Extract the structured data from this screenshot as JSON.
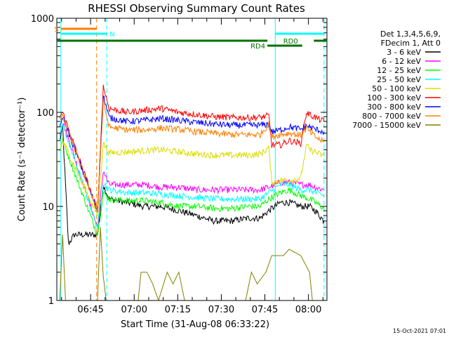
{
  "chart_data": {
    "type": "line",
    "title": "RHESSI Observing Summary Count Rates",
    "xlabel": "Start Time (31-Aug-08 06:33:22)",
    "ylabel": "Count Rate (s⁻¹ detector⁻¹)",
    "y_scale": "log",
    "ylim": [
      1,
      1000
    ],
    "y_ticks": [
      {
        "value": 1,
        "label": "1"
      },
      {
        "value": 10,
        "label": "10"
      },
      {
        "value": 100,
        "label": "100"
      },
      {
        "value": 1000,
        "label": "1000"
      }
    ],
    "x_unit": "minutes after 06:33:22",
    "xlim": [
      0,
      93
    ],
    "x_ticks": [
      {
        "value": 11.63,
        "label": "06:45"
      },
      {
        "value": 26.63,
        "label": "07:00"
      },
      {
        "value": 41.63,
        "label": "07:15"
      },
      {
        "value": 56.63,
        "label": "07:30"
      },
      {
        "value": 71.63,
        "label": "07:45"
      },
      {
        "value": 86.63,
        "label": "08:00"
      }
    ],
    "legend_header": [
      "Det 1,3,4,5,6,9,",
      "FDecim 1, Att 0"
    ],
    "legend_position": "right",
    "series": [
      {
        "name": "3 - 6 keV",
        "color": "#000000",
        "points": [
          [
            1,
            50
          ],
          [
            2,
            70
          ],
          [
            4,
            4
          ],
          [
            6,
            5
          ],
          [
            14,
            5
          ],
          [
            16,
            17
          ],
          [
            18,
            12
          ],
          [
            24,
            11
          ],
          [
            30,
            10
          ],
          [
            36,
            10
          ],
          [
            42,
            9
          ],
          [
            48,
            8
          ],
          [
            54,
            7
          ],
          [
            60,
            7
          ],
          [
            66,
            7.5
          ],
          [
            70,
            7.5
          ],
          [
            73,
            9
          ],
          [
            77,
            11
          ],
          [
            80,
            11
          ],
          [
            84,
            10
          ],
          [
            87,
            10
          ],
          [
            89,
            9
          ],
          [
            92,
            7
          ]
        ]
      },
      {
        "name": "6 - 12 keV",
        "color": "#ff00ff",
        "points": [
          [
            1,
            60
          ],
          [
            2,
            80
          ],
          [
            14,
            6
          ],
          [
            16,
            24
          ],
          [
            18,
            17
          ],
          [
            24,
            17
          ],
          [
            30,
            17
          ],
          [
            36,
            16
          ],
          [
            42,
            16
          ],
          [
            48,
            15
          ],
          [
            54,
            15
          ],
          [
            60,
            15
          ],
          [
            66,
            15
          ],
          [
            70,
            15
          ],
          [
            73,
            16
          ],
          [
            77,
            18
          ],
          [
            80,
            18
          ],
          [
            84,
            17
          ],
          [
            87,
            17
          ],
          [
            89,
            16
          ],
          [
            92,
            15
          ]
        ]
      },
      {
        "name": "12 - 25 keV",
        "color": "#00ff00",
        "points": [
          [
            1,
            40
          ],
          [
            2,
            50
          ],
          [
            14,
            5
          ],
          [
            16,
            14
          ],
          [
            18,
            12
          ],
          [
            24,
            11.5
          ],
          [
            30,
            11.5
          ],
          [
            36,
            11
          ],
          [
            42,
            10
          ],
          [
            48,
            10
          ],
          [
            54,
            9.5
          ],
          [
            60,
            9.5
          ],
          [
            66,
            10
          ],
          [
            70,
            10
          ],
          [
            73,
            12
          ],
          [
            77,
            14
          ],
          [
            80,
            15
          ],
          [
            84,
            13
          ],
          [
            87,
            12
          ],
          [
            89,
            11
          ],
          [
            92,
            9.5
          ]
        ]
      },
      {
        "name": "25 - 50 keV",
        "color": "#00ffff",
        "points": [
          [
            1,
            55
          ],
          [
            2,
            75
          ],
          [
            14,
            6
          ],
          [
            16,
            18
          ],
          [
            18,
            15
          ],
          [
            24,
            14
          ],
          [
            30,
            14
          ],
          [
            36,
            13.5
          ],
          [
            42,
            13
          ],
          [
            48,
            12.5
          ],
          [
            54,
            12
          ],
          [
            60,
            12
          ],
          [
            66,
            12
          ],
          [
            70,
            12
          ],
          [
            73,
            14
          ],
          [
            77,
            17
          ],
          [
            80,
            17
          ],
          [
            84,
            15
          ],
          [
            87,
            15
          ],
          [
            89,
            14
          ],
          [
            92,
            13
          ]
        ]
      },
      {
        "name": "50 - 100 keV",
        "color": "#dddd00",
        "points": [
          [
            1,
            40
          ],
          [
            2,
            50
          ],
          [
            14,
            8
          ],
          [
            16,
            47
          ],
          [
            18,
            37
          ],
          [
            24,
            38
          ],
          [
            30,
            39
          ],
          [
            36,
            40
          ],
          [
            42,
            38
          ],
          [
            48,
            36
          ],
          [
            54,
            35
          ],
          [
            60,
            35
          ],
          [
            66,
            35
          ],
          [
            70,
            36
          ],
          [
            73,
            42
          ],
          [
            74,
            18
          ],
          [
            77,
            19
          ],
          [
            80,
            19
          ],
          [
            84,
            20
          ],
          [
            86,
            45
          ],
          [
            87,
            40
          ],
          [
            89,
            38
          ],
          [
            92,
            34
          ]
        ]
      },
      {
        "name": "100 - 300 keV",
        "color": "#ff0000",
        "points": [
          [
            1,
            90
          ],
          [
            2,
            100
          ],
          [
            14,
            9
          ],
          [
            16,
            190
          ],
          [
            18,
            110
          ],
          [
            24,
            100
          ],
          [
            30,
            105
          ],
          [
            36,
            110
          ],
          [
            42,
            100
          ],
          [
            48,
            95
          ],
          [
            54,
            90
          ],
          [
            60,
            88
          ],
          [
            66,
            88
          ],
          [
            70,
            88
          ],
          [
            73,
            92
          ],
          [
            74,
            45
          ],
          [
            77,
            45
          ],
          [
            80,
            50
          ],
          [
            84,
            47
          ],
          [
            86,
            100
          ],
          [
            87,
            95
          ],
          [
            89,
            88
          ],
          [
            92,
            80
          ]
        ]
      },
      {
        "name": "300 - 800 keV",
        "color": "#0000ff",
        "points": [
          [
            1,
            70
          ],
          [
            2,
            90
          ],
          [
            14,
            9
          ],
          [
            16,
            150
          ],
          [
            18,
            88
          ],
          [
            24,
            80
          ],
          [
            30,
            82
          ],
          [
            36,
            86
          ],
          [
            42,
            82
          ],
          [
            48,
            78
          ],
          [
            54,
            75
          ],
          [
            60,
            73
          ],
          [
            66,
            73
          ],
          [
            70,
            73
          ],
          [
            73,
            75
          ],
          [
            74,
            62
          ],
          [
            77,
            65
          ],
          [
            80,
            70
          ],
          [
            84,
            66
          ],
          [
            86,
            72
          ],
          [
            87,
            70
          ],
          [
            89,
            66
          ],
          [
            92,
            62
          ]
        ]
      },
      {
        "name": "800 - 7000 keV",
        "color": "#ff8000",
        "points": [
          [
            1,
            80
          ],
          [
            2,
            90
          ],
          [
            14,
            9
          ],
          [
            16,
            130
          ],
          [
            18,
            70
          ],
          [
            24,
            65
          ],
          [
            30,
            65
          ],
          [
            36,
            68
          ],
          [
            42,
            66
          ],
          [
            48,
            62
          ],
          [
            54,
            60
          ],
          [
            60,
            58
          ],
          [
            66,
            58
          ],
          [
            70,
            58
          ],
          [
            73,
            75
          ],
          [
            74,
            55
          ],
          [
            77,
            58
          ],
          [
            80,
            60
          ],
          [
            84,
            57
          ],
          [
            86,
            68
          ],
          [
            87,
            62
          ],
          [
            89,
            55
          ],
          [
            92,
            48
          ]
        ]
      },
      {
        "name": "7000 - 15000 keV",
        "color": "#808000",
        "points": [
          [
            1,
            1
          ],
          [
            2,
            5
          ],
          [
            3,
            1
          ],
          [
            14,
            1
          ],
          [
            15,
            6
          ],
          [
            16,
            1.8
          ],
          [
            17,
            1
          ],
          [
            28,
            1
          ],
          [
            29,
            2
          ],
          [
            31,
            2
          ],
          [
            33,
            1.5
          ],
          [
            35,
            1
          ],
          [
            38,
            2
          ],
          [
            40,
            1.5
          ],
          [
            42,
            2
          ],
          [
            44,
            1
          ],
          [
            65,
            1
          ],
          [
            67,
            2
          ],
          [
            69,
            1.5
          ],
          [
            72,
            2
          ],
          [
            74,
            3
          ],
          [
            78,
            3
          ],
          [
            80,
            3.5
          ],
          [
            84,
            3
          ],
          [
            87,
            2
          ],
          [
            88,
            1
          ]
        ]
      }
    ],
    "vertical_lines": [
      {
        "x": 1.4,
        "color": "#00ffff",
        "style": "solid"
      },
      {
        "x": 13.7,
        "color": "#ff8000",
        "style": "dashed"
      },
      {
        "x": 17.2,
        "color": "#00ffff",
        "style": "dashed"
      },
      {
        "x": 75.2,
        "color": "#00ffff",
        "style": "solid"
      },
      {
        "x": 92.0,
        "color": "#00ffff",
        "style": "dashed"
      }
    ],
    "state_bars": [
      {
        "label": "S",
        "color": "#ff8000",
        "x0": 1.4,
        "x1": 13.7,
        "level": 1,
        "label_side": "left"
      },
      {
        "label": "N",
        "color": "#00ffff",
        "x0": 1.4,
        "x1": 17.2,
        "level": 2,
        "label_side": "right"
      },
      {
        "label": "N",
        "color": "#00ffff",
        "x0": 75.2,
        "x1": 92.0,
        "level": 2,
        "label_side": "none"
      },
      {
        "label": "RD0",
        "color": "#007000",
        "x0": 0,
        "x1": 93,
        "level": 3,
        "label_side": "gap",
        "gap": [
          72.5,
          88.5
        ]
      },
      {
        "label": "RD4",
        "color": "#007000",
        "x0": 72.5,
        "x1": 84.5,
        "level": 4,
        "label_side": "left"
      }
    ]
  },
  "footer": {
    "timestamp": "15-Oct-2021 07:01"
  }
}
